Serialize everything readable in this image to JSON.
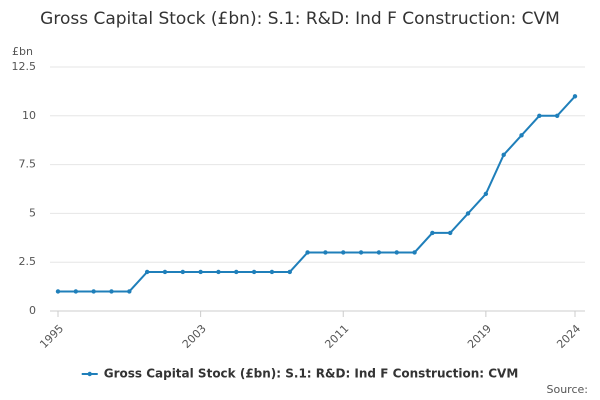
{
  "chart_data": {
    "type": "line",
    "title": "Gross Capital Stock (£bn): S.1: R&D: Ind F Construction: CVM",
    "y_unit": "£bn",
    "source": "Source:",
    "x": [
      1995,
      1996,
      1997,
      1998,
      1999,
      2000,
      2001,
      2002,
      2003,
      2004,
      2005,
      2006,
      2007,
      2008,
      2009,
      2010,
      2011,
      2012,
      2013,
      2014,
      2015,
      2016,
      2017,
      2018,
      2019,
      2020,
      2021,
      2022,
      2023,
      2024
    ],
    "series": [
      {
        "name": "Gross Capital Stock (£bn): S.1: R&D: Ind F Construction: CVM",
        "color": "#1f7fba",
        "values": [
          1,
          1,
          1,
          1,
          1,
          2,
          2,
          2,
          2,
          2,
          2,
          2,
          2,
          2,
          3,
          3,
          3,
          3,
          3,
          3,
          3,
          4,
          4,
          5,
          6,
          8,
          9,
          10,
          10,
          11
        ]
      }
    ],
    "xlim": [
      1995,
      2024
    ],
    "xticks": [
      1995,
      2003,
      2011,
      2019,
      2024
    ],
    "ylim": [
      0,
      12.5
    ],
    "yticks": [
      0,
      2.5,
      5,
      7.5,
      10,
      12.5
    ],
    "grid": true
  }
}
